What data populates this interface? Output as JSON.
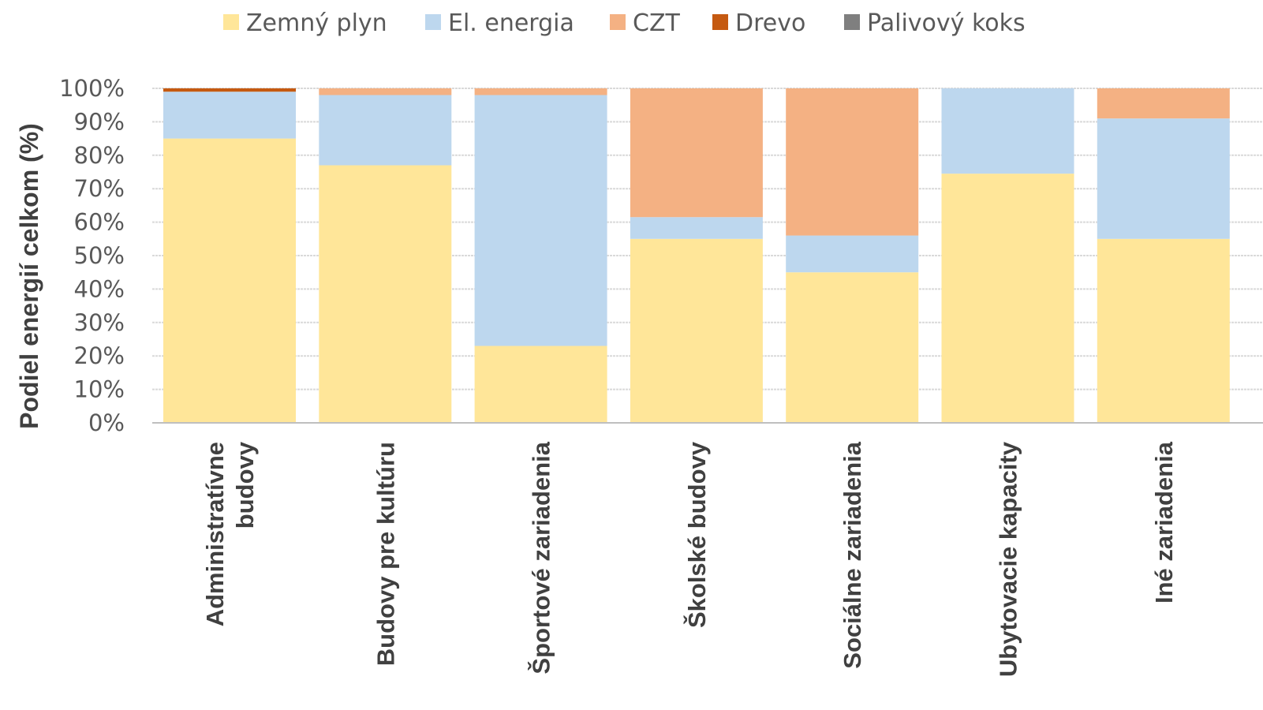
{
  "chart_data": {
    "type": "bar",
    "stacked": true,
    "categories": [
      [
        "Administratívne",
        "budovy"
      ],
      [
        "Budovy pre kultúru"
      ],
      [
        "Športové zariadenia"
      ],
      [
        "Školské budovy"
      ],
      [
        "Sociálne zariadenia"
      ],
      [
        "Ubytovacie kapacity"
      ],
      [
        "Iné zariadenia"
      ]
    ],
    "series": [
      {
        "name": "Zemný plyn",
        "color": "#FFE699",
        "values": [
          85,
          77,
          23,
          55,
          45,
          74.5,
          55
        ]
      },
      {
        "name": "El. energia",
        "color": "#BDD7EE",
        "values": [
          14,
          21,
          75,
          6.5,
          11,
          25.5,
          36
        ]
      },
      {
        "name": "CZT",
        "color": "#F4B183",
        "values": [
          0,
          2,
          2,
          38.5,
          44,
          0,
          9
        ]
      },
      {
        "name": "Drevo",
        "color": "#C55A11",
        "values": [
          1,
          0,
          0,
          0,
          0,
          0,
          0
        ]
      },
      {
        "name": "Palivový koks",
        "color": "#7F7F7F",
        "values": [
          0,
          0,
          0,
          0,
          0,
          0,
          0
        ]
      }
    ],
    "yticks": [
      "0%",
      "10%",
      "20%",
      "30%",
      "40%",
      "50%",
      "60%",
      "70%",
      "80%",
      "90%",
      "100%"
    ],
    "ylim": [
      0,
      100
    ],
    "ylabel": "Podiel energií celkom (%)",
    "xlabel": "",
    "grid": true,
    "legend": "top"
  }
}
